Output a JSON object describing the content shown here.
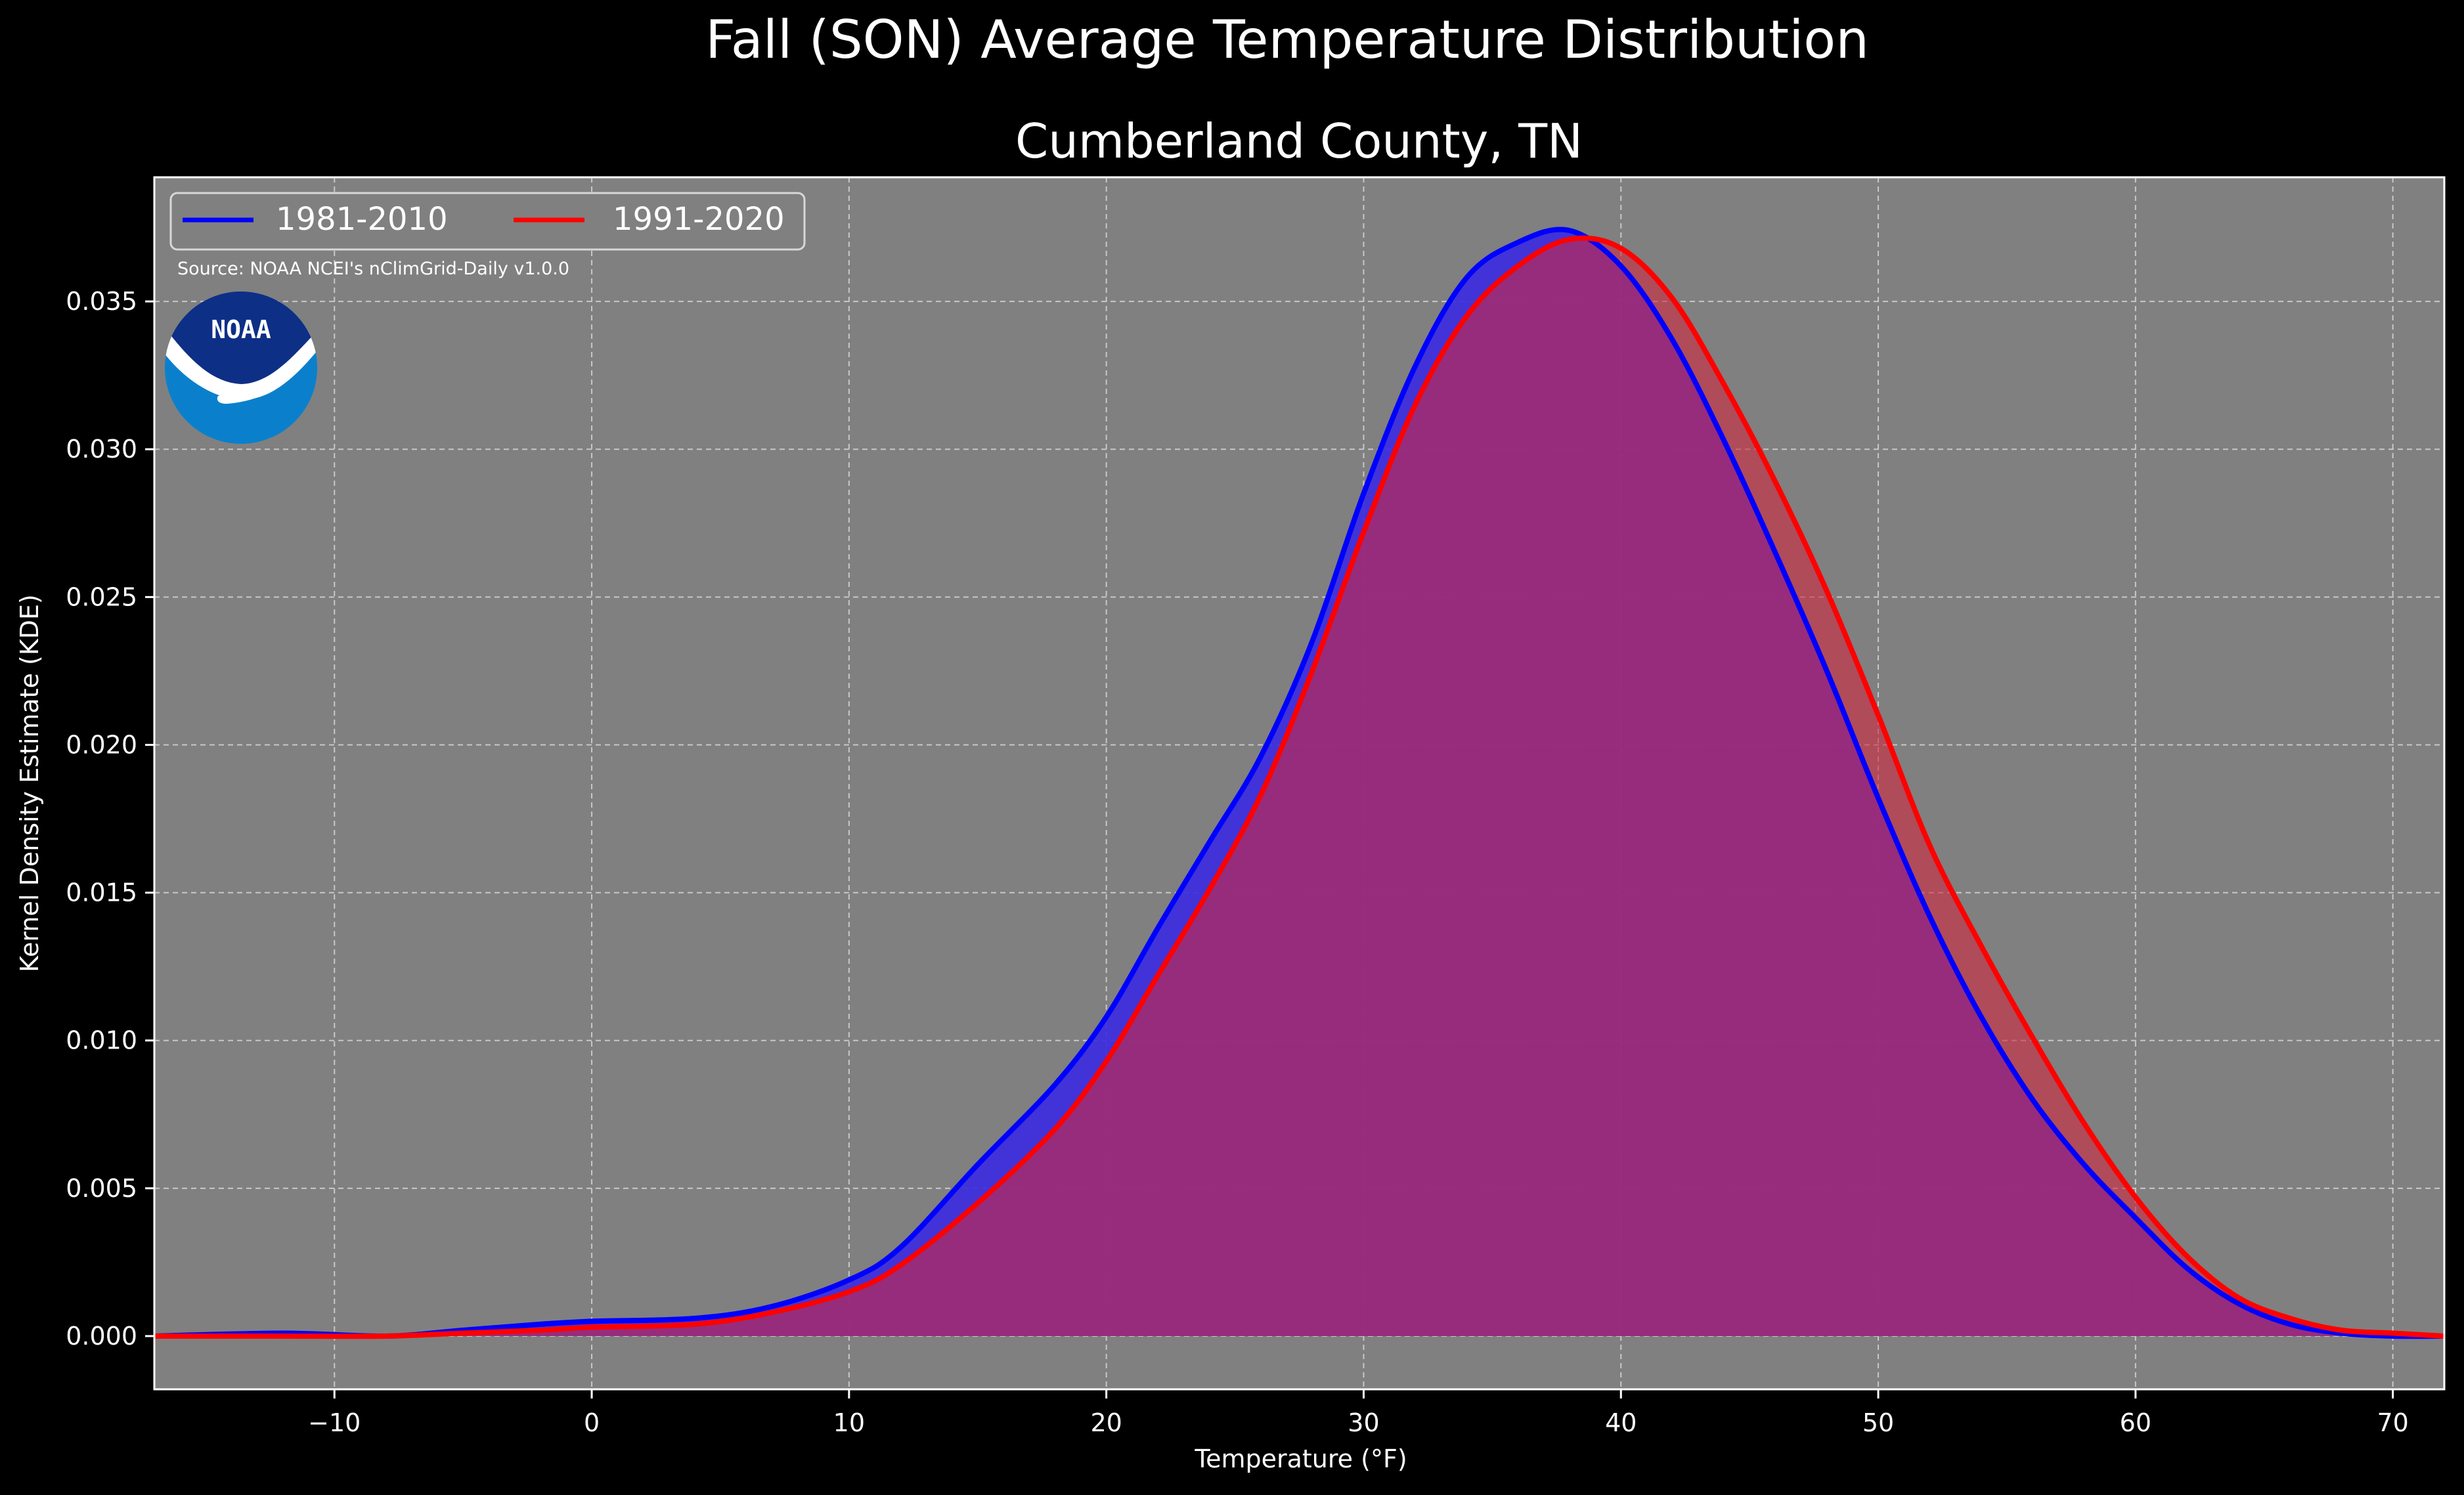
{
  "chart_data": {
    "type": "area",
    "title": "Fall (SON) Average Temperature Distribution",
    "subtitle": "Cumberland County, TN",
    "xlabel": "Temperature (°F)",
    "ylabel": "Kernel Density Estimate (KDE)",
    "xlim": [
      -17,
      72
    ],
    "ylim": [
      -0.0018,
      0.0392
    ],
    "xticks": [
      -10,
      0,
      10,
      20,
      30,
      40,
      50,
      60,
      70
    ],
    "xtick_labels": [
      "−10",
      "0",
      "10",
      "20",
      "30",
      "40",
      "50",
      "60",
      "70"
    ],
    "yticks": [
      0.0,
      0.005,
      0.01,
      0.015,
      0.02,
      0.025,
      0.03,
      0.035
    ],
    "ytick_labels": [
      "0.000",
      "0.005",
      "0.010",
      "0.015",
      "0.020",
      "0.025",
      "0.030",
      "0.035"
    ],
    "grid": true,
    "legend_position": "top-left",
    "annotation": "Source: NOAA NCEI's nClimGrid-Daily v1.0.0",
    "series": [
      {
        "name": "1981-2010",
        "color": "#0000ff",
        "fill": "#3c2ce0",
        "x": [
          -17,
          -12,
          -8,
          -5,
          -2,
          0,
          4,
          7,
          10,
          12,
          15,
          18,
          20,
          22,
          24,
          26,
          28,
          30,
          32,
          34,
          36,
          38,
          40,
          42,
          44,
          46,
          48,
          50,
          52,
          54,
          56,
          58,
          60,
          62,
          64,
          66,
          68,
          70,
          72
        ],
        "y": [
          0.0,
          0.0001,
          0.0,
          0.0002,
          0.0004,
          0.0005,
          0.0006,
          0.001,
          0.0019,
          0.003,
          0.0058,
          0.0085,
          0.0108,
          0.0138,
          0.0167,
          0.0196,
          0.0235,
          0.0285,
          0.0328,
          0.0358,
          0.037,
          0.0374,
          0.0362,
          0.0337,
          0.0303,
          0.0265,
          0.0225,
          0.0182,
          0.0142,
          0.0108,
          0.008,
          0.0058,
          0.004,
          0.0023,
          0.0011,
          0.0004,
          0.0001,
          0.0,
          0.0
        ]
      },
      {
        "name": "1991-2020",
        "color": "#ff0000",
        "fill": "#d02840",
        "x": [
          -17,
          -12,
          -8,
          -5,
          -2,
          0,
          4,
          7,
          10,
          12,
          15,
          18,
          20,
          22,
          24,
          26,
          28,
          30,
          32,
          34,
          36,
          38,
          40,
          42,
          44,
          46,
          48,
          50,
          52,
          54,
          56,
          58,
          60,
          62,
          64,
          66,
          68,
          70,
          72
        ],
        "y": [
          0.0,
          0.0,
          0.0,
          0.0001,
          0.0002,
          0.0003,
          0.0004,
          0.0008,
          0.0015,
          0.0024,
          0.0045,
          0.007,
          0.0093,
          0.0122,
          0.0151,
          0.0183,
          0.0225,
          0.0272,
          0.0315,
          0.0345,
          0.0362,
          0.0371,
          0.0368,
          0.0351,
          0.0322,
          0.0289,
          0.0252,
          0.021,
          0.0166,
          0.0132,
          0.0101,
          0.0072,
          0.0047,
          0.0027,
          0.0013,
          0.0006,
          0.0002,
          0.0001,
          0.0
        ]
      }
    ]
  },
  "logo": {
    "icon": "noaa-logo-icon",
    "text": "NOAA"
  },
  "colors": {
    "background": "#000000",
    "plot_background": "#808080",
    "overlap_fill": "#9e1f5b",
    "text": "#ffffff"
  }
}
